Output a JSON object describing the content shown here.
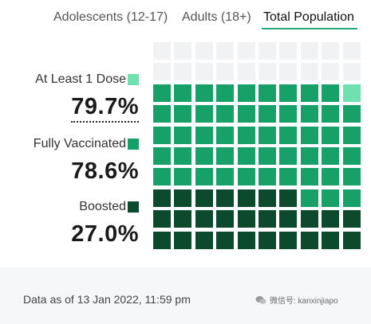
{
  "tabs": [
    {
      "label": "Adolescents (12-17)",
      "active": false
    },
    {
      "label": "Adults (18+)",
      "active": false
    },
    {
      "label": "Total Population",
      "active": true
    }
  ],
  "colors": {
    "accent": "#27a878",
    "empty": "#f1f2f4",
    "at_least_1_dose": "#6fe0b0",
    "fully_vaccinated": "#17a168",
    "boosted": "#0d4a2d"
  },
  "chart_data": {
    "type": "waffle",
    "grid_rows": 10,
    "grid_cols": 10,
    "series": [
      {
        "name": "At Least 1 Dose",
        "value": 79.7,
        "value_label": "79.7%",
        "color": "#6fe0b0"
      },
      {
        "name": "Fully Vaccinated",
        "value": 78.6,
        "value_label": "78.6%",
        "color": "#17a168"
      },
      {
        "name": "Boosted",
        "value": 27.0,
        "value_label": "27.0%",
        "color": "#0d4a2d"
      }
    ]
  },
  "footer": {
    "note": "Data as of 13 Jan 2022, 11:59 pm",
    "watermark": "微信号: kanxinjiapo"
  }
}
